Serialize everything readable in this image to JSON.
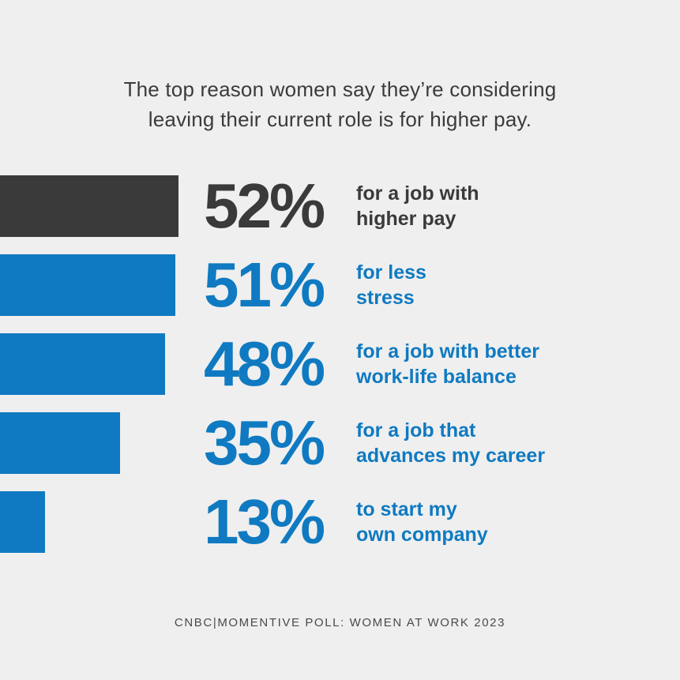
{
  "title_lines": [
    "The top reason women say they’re considering",
    "leaving their current role is for higher pay."
  ],
  "source": "CNBC|MOMENTIVE POLL: WOMEN AT WORK 2023",
  "colors": {
    "background": "#efefef",
    "highlight": "#3a3a3a",
    "accent": "#0f7ac1",
    "title_text": "#3b3b3b"
  },
  "chart_data": {
    "type": "bar",
    "orientation": "horizontal",
    "title": "The top reason women say they’re considering leaving their current role is for higher pay.",
    "unit": "%",
    "categories": [
      "for a job with higher pay",
      "for less stress",
      "for a job with better work-life balance",
      "for a job that advances my career",
      "to start my own company"
    ],
    "values": [
      52,
      51,
      48,
      35,
      13
    ],
    "value_labels": [
      "52%",
      "51%",
      "48%",
      "35%",
      "13%"
    ],
    "label_lines": [
      [
        "for a job with",
        "higher pay"
      ],
      [
        "for less",
        "stress"
      ],
      [
        "for a job with better",
        "work-life balance"
      ],
      [
        "for a job that",
        "advances my career"
      ],
      [
        "to start my",
        "own company"
      ]
    ],
    "highlighted_index": 0,
    "xlim": [
      0,
      100
    ]
  }
}
